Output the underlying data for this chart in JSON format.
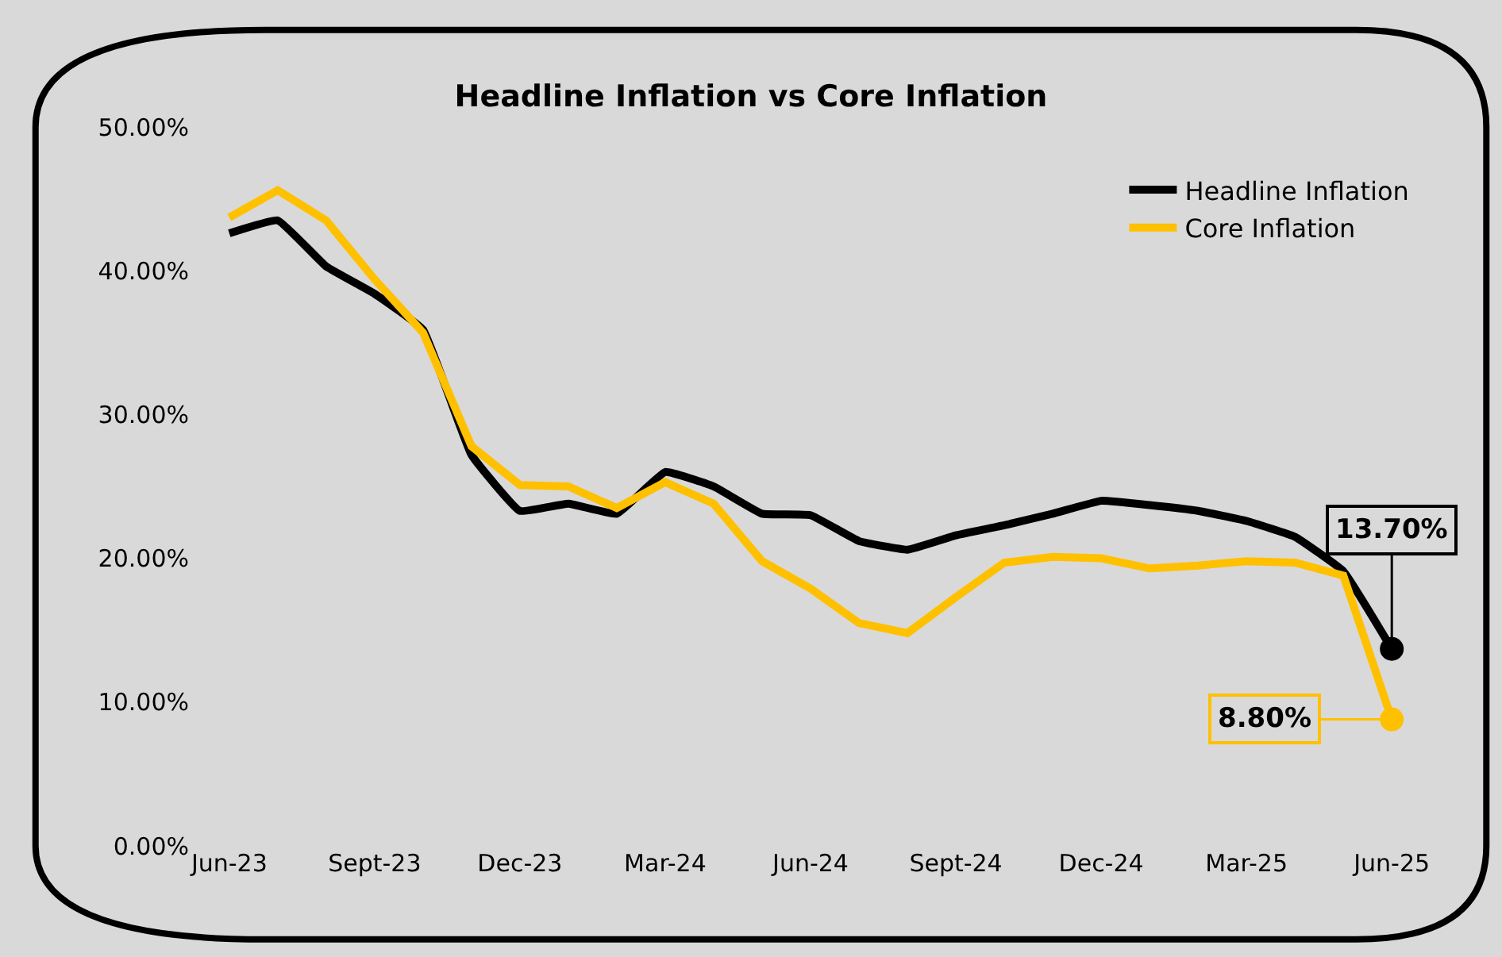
{
  "chart_data": {
    "type": "line",
    "title": "Headline Inflation vs Core Inflation",
    "categories": [
      "Jun-23",
      null,
      null,
      "Sept-23",
      null,
      null,
      "Dec-23",
      null,
      null,
      "Mar-24",
      null,
      null,
      "Jun-24",
      null,
      null,
      "Sept-24",
      null,
      null,
      "Dec-24",
      null,
      null,
      "Mar-25",
      null,
      null,
      "Jun-25"
    ],
    "series": [
      {
        "name": "Headline Inflation",
        "color": "#000000",
        "values": [
          42.6,
          43.5,
          40.3,
          38.4,
          35.9,
          27.2,
          23.3,
          23.8,
          23.1,
          26.0,
          25.0,
          23.1,
          23.0,
          21.2,
          20.6,
          21.6,
          22.3,
          23.1,
          24.0,
          23.7,
          23.3,
          22.6,
          21.5,
          19.1,
          13.7
        ],
        "value_labels": [
          null,
          null,
          null,
          null,
          null,
          null,
          null,
          null,
          null,
          null,
          null,
          null,
          null,
          null,
          null,
          null,
          null,
          null,
          null,
          null,
          null,
          null,
          null,
          null,
          "13.70%"
        ]
      },
      {
        "name": "Core Inflation",
        "color": "#ffc000",
        "values": [
          43.7,
          45.6,
          43.5,
          39.4,
          35.7,
          27.8,
          25.1,
          25.0,
          23.5,
          25.3,
          23.8,
          19.8,
          17.9,
          15.5,
          14.8,
          17.3,
          19.7,
          20.1,
          20.0,
          19.3,
          19.5,
          19.8,
          19.7,
          18.8,
          8.8
        ],
        "value_labels": [
          null,
          null,
          null,
          null,
          null,
          null,
          null,
          null,
          null,
          null,
          null,
          null,
          null,
          null,
          null,
          null,
          null,
          null,
          null,
          null,
          null,
          null,
          null,
          null,
          "8.80%"
        ]
      }
    ],
    "ylim": [
      0,
      50
    ],
    "yticks": [
      {
        "value": 0,
        "label": "0.00%"
      },
      {
        "value": 10,
        "label": "10.00%"
      },
      {
        "value": 20,
        "label": "20.00%"
      },
      {
        "value": 30,
        "label": "30.00%"
      },
      {
        "value": 40,
        "label": "40.00%"
      },
      {
        "value": 50,
        "label": "50.00%"
      }
    ],
    "grid": false,
    "legend": "top right",
    "line_style": "solid"
  }
}
